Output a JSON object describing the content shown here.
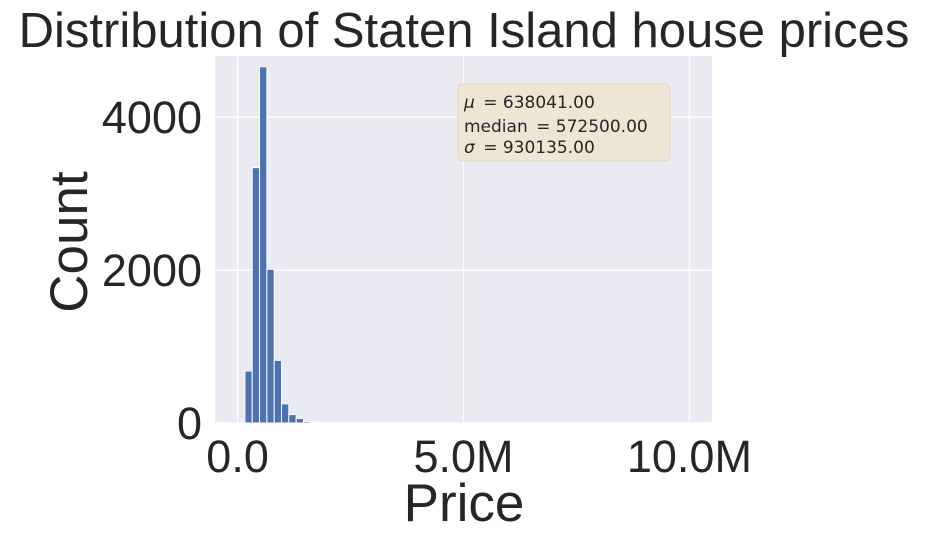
{
  "chart_data": {
    "type": "bar",
    "title": "Distribution of Staten Island house prices",
    "xlabel": "Price",
    "ylabel": "Count",
    "xlim": [
      -500000,
      10500000
    ],
    "ylim": [
      0,
      4800
    ],
    "x_ticks": [
      {
        "value": 0,
        "label": "0.0"
      },
      {
        "value": 5000000,
        "label": "5.0M"
      },
      {
        "value": 10000000,
        "label": "10.0M"
      }
    ],
    "y_ticks": [
      {
        "value": 0,
        "label": "0"
      },
      {
        "value": 2000,
        "label": "2000"
      },
      {
        "value": 4000,
        "label": "4000"
      }
    ],
    "grid": true,
    "bin_width": 162000,
    "bins": [
      {
        "start": 0,
        "count": 0
      },
      {
        "start": 162000,
        "count": 680
      },
      {
        "start": 324000,
        "count": 3340
      },
      {
        "start": 486000,
        "count": 4660
      },
      {
        "start": 648000,
        "count": 2010
      },
      {
        "start": 810000,
        "count": 820
      },
      {
        "start": 972000,
        "count": 250
      },
      {
        "start": 1134000,
        "count": 110
      },
      {
        "start": 1296000,
        "count": 60
      },
      {
        "start": 1458000,
        "count": 20
      },
      {
        "start": 1620000,
        "count": 12
      },
      {
        "start": 1782000,
        "count": 8
      },
      {
        "start": 1944000,
        "count": 5
      },
      {
        "start": 2106000,
        "count": 3
      },
      {
        "start": 2268000,
        "count": 2
      },
      {
        "start": 2430000,
        "count": 1
      }
    ],
    "bar_color": "#4c72b0",
    "stats_box": {
      "mu_symbol": "μ",
      "mu_value": "= 638041.00",
      "median_label": "median",
      "median_value": "= 572500.00",
      "sigma_symbol": "σ",
      "sigma_value": "= 930135.00",
      "background": "#f0e4d0"
    },
    "plot_background": "#eaeaf2"
  }
}
